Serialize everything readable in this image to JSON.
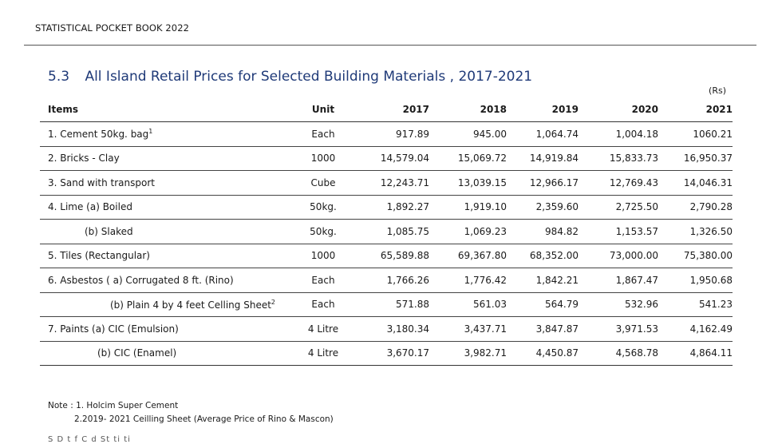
{
  "header": "STATISTICAL POCKET BOOK 2022",
  "table_number": "5.3",
  "title": "All Island Retail Prices for Selected Building Materials , 2017-2021",
  "currency": "(Rs)",
  "columns": [
    "Items",
    "Unit",
    "2017",
    "2018",
    "2019",
    "2020",
    "2021"
  ],
  "rows": [
    {
      "label": "1. Cement  50kg. bag",
      "sup": "1",
      "unit": "Each",
      "values": [
        "917.89",
        "945.00",
        "1,064.74",
        "1,004.18",
        "1060.21"
      ]
    },
    {
      "label": "2.  Bricks -  Clay",
      "sup": "",
      "unit": "1000",
      "values": [
        "14,579.04",
        "15,069.72",
        "14,919.84",
        "15,833.73",
        "16,950.37"
      ]
    },
    {
      "label": "3. Sand with transport",
      "sup": "",
      "unit": "Cube",
      "values": [
        "12,243.71",
        "13,039.15",
        "12,966.17",
        "12,769.43",
        "14,046.31"
      ]
    },
    {
      "label": "4. Lime (a) Boiled",
      "sup": "",
      "unit": "50kg.",
      "values": [
        "1,892.27",
        "1,919.10",
        "2,359.60",
        "2,725.50",
        "2,790.28"
      ]
    },
    {
      "label": "(b) Slaked",
      "sup": "",
      "unit": "50kg.",
      "values": [
        "1,085.75",
        "1,069.23",
        "984.82",
        "1,153.57",
        "1,326.50"
      ]
    },
    {
      "label": "5. Tiles (Rectangular)",
      "sup": "",
      "unit": "1000",
      "values": [
        "65,589.88",
        "69,367.80",
        "68,352.00",
        "73,000.00",
        "75,380.00"
      ]
    },
    {
      "label": "6. Asbestos  ( a) Corrugated 8 ft. (Rino)",
      "sup": "",
      "unit": "Each",
      "values": [
        "1,766.26",
        "1,776.42",
        "1,842.21",
        "1,867.47",
        "1,950.68"
      ]
    },
    {
      "label": "(b) Plain 4 by 4 feet Celling Sheet",
      "sup": "2",
      "unit": "Each",
      "values": [
        "571.88",
        "561.03",
        "564.79",
        "532.96",
        "541.23"
      ]
    },
    {
      "label": "7. Paints   (a) CIC (Emulsion)",
      "sup": "",
      "unit": "4 Litre",
      "values": [
        "3,180.34",
        "3,437.71",
        "3,847.87",
        "3,971.53",
        "4,162.49"
      ]
    },
    {
      "label": "(b) CIC (Enamel)",
      "sup": "",
      "unit": "4 Litre",
      "values": [
        "3,670.17",
        "3,982.71",
        "4,450.87",
        "4,568.78",
        "4,864.11"
      ]
    }
  ],
  "notes": {
    "line1": "Note : 1. Holcim Super Cement",
    "line2": "2.2019- 2021 Ceilling Sheet (Average Price of Rino & Mascon)"
  },
  "source_cutoff": "S       D        t   f C          d St ti ti"
}
